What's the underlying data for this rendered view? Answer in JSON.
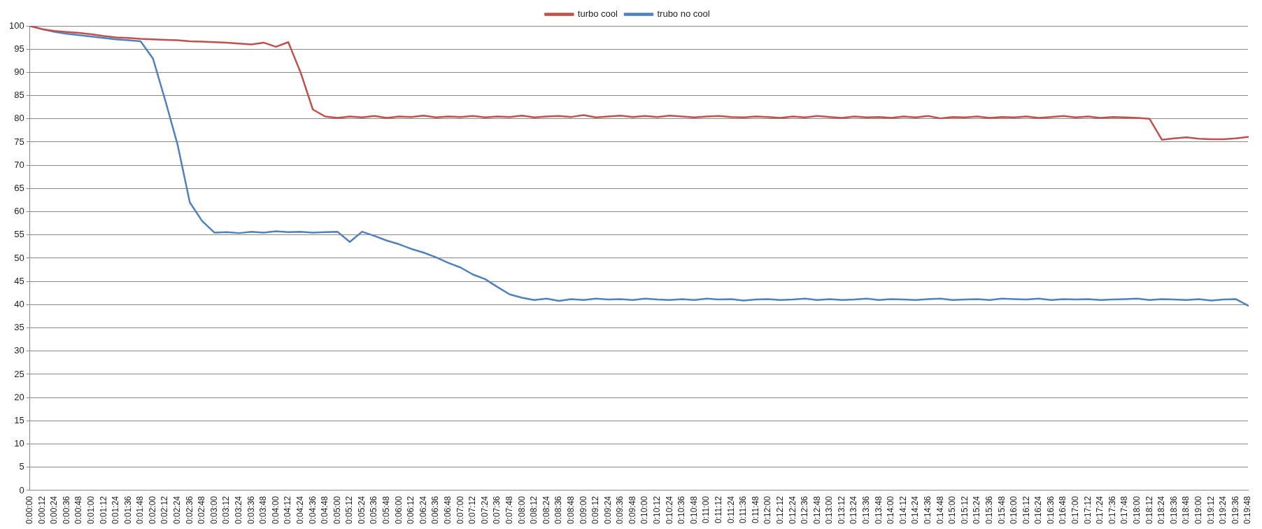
{
  "chart_data": {
    "type": "line",
    "categories": [
      "0:00:00",
      "0:00:12",
      "0:00:24",
      "0:00:36",
      "0:00:48",
      "0:01:00",
      "0:01:12",
      "0:01:24",
      "0:01:36",
      "0:01:48",
      "0:02:00",
      "0:02:12",
      "0:02:24",
      "0:02:36",
      "0:02:48",
      "0:03:00",
      "0:03:12",
      "0:03:24",
      "0:03:36",
      "0:03:48",
      "0:04:00",
      "0:04:12",
      "0:04:24",
      "0:04:36",
      "0:04:48",
      "0:05:00",
      "0:05:12",
      "0:05:24",
      "0:05:36",
      "0:05:48",
      "0:06:00",
      "0:06:12",
      "0:06:24",
      "0:06:36",
      "0:06:48",
      "0:07:00",
      "0:07:12",
      "0:07:24",
      "0:07:36",
      "0:07:48",
      "0:08:00",
      "0:08:12",
      "0:08:24",
      "0:08:36",
      "0:08:48",
      "0:09:00",
      "0:09:12",
      "0:09:24",
      "0:09:36",
      "0:09:48",
      "0:10:00",
      "0:10:12",
      "0:10:24",
      "0:10:36",
      "0:10:48",
      "0:11:00",
      "0:11:12",
      "0:11:24",
      "0:11:36",
      "0:11:48",
      "0:12:00",
      "0:12:12",
      "0:12:24",
      "0:12:36",
      "0:12:48",
      "0:13:00",
      "0:13:12",
      "0:13:24",
      "0:13:36",
      "0:13:48",
      "0:14:00",
      "0:14:12",
      "0:14:24",
      "0:14:36",
      "0:14:48",
      "0:15:00",
      "0:15:12",
      "0:15:24",
      "0:15:36",
      "0:15:48",
      "0:16:00",
      "0:16:12",
      "0:16:24",
      "0:16:36",
      "0:16:48",
      "0:17:00",
      "0:17:12",
      "0:17:24",
      "0:17:36",
      "0:17:48",
      "0:18:00",
      "0:18:12",
      "0:18:24",
      "0:18:36",
      "0:18:48",
      "0:19:00",
      "0:19:12",
      "0:19:24",
      "0:19:36",
      "0:19:48"
    ],
    "series": [
      {
        "name": "turbo cool",
        "color": "#c0504d",
        "values": [
          100,
          99.3,
          98.9,
          98.7,
          98.5,
          98.2,
          97.8,
          97.5,
          97.4,
          97.2,
          97.1,
          97,
          96.9,
          96.7,
          96.6,
          96.5,
          96.4,
          96.2,
          96,
          96.4,
          95.5,
          96.5,
          90,
          82,
          80.5,
          80.2,
          80.5,
          80.3,
          80.6,
          80.2,
          80.5,
          80.4,
          80.7,
          80.3,
          80.5,
          80.4,
          80.6,
          80.3,
          80.5,
          80.4,
          80.7,
          80.3,
          80.5,
          80.6,
          80.4,
          80.8,
          80.3,
          80.5,
          80.7,
          80.4,
          80.6,
          80.4,
          80.7,
          80.5,
          80.3,
          80.5,
          80.6,
          80.4,
          80.3,
          80.5,
          80.4,
          80.2,
          80.5,
          80.3,
          80.6,
          80.4,
          80.2,
          80.5,
          80.3,
          80.4,
          80.2,
          80.5,
          80.3,
          80.6,
          80.1,
          80.4,
          80.3,
          80.5,
          80.2,
          80.4,
          80.3,
          80.5,
          80.2,
          80.4,
          80.6,
          80.3,
          80.5,
          80.2,
          80.4,
          80.3,
          80.2,
          80,
          75.5,
          75.8,
          76,
          75.7,
          75.6,
          75.6,
          75.8,
          76.1
        ]
      },
      {
        "name": "trubo no cool",
        "color": "#4f81bd",
        "values": [
          100,
          99.3,
          98.7,
          98.3,
          98,
          97.7,
          97.4,
          97.1,
          96.9,
          96.7,
          93,
          84,
          74.5,
          62,
          58,
          55.5,
          55.6,
          55.4,
          55.7,
          55.5,
          55.8,
          55.6,
          55.7,
          55.5,
          55.6,
          55.7,
          53.5,
          55.7,
          54.8,
          53.8,
          53,
          52,
          51.2,
          50.2,
          49,
          48,
          46.5,
          45.5,
          43.8,
          42.2,
          41.5,
          41,
          41.3,
          40.8,
          41.2,
          41,
          41.3,
          41.1,
          41.2,
          41,
          41.3,
          41.1,
          41,
          41.2,
          41,
          41.3,
          41.1,
          41.2,
          40.9,
          41.1,
          41.2,
          41,
          41.1,
          41.3,
          41,
          41.2,
          41,
          41.1,
          41.3,
          41,
          41.2,
          41.1,
          41,
          41.2,
          41.3,
          41,
          41.1,
          41.2,
          41,
          41.3,
          41.2,
          41.1,
          41.3,
          41,
          41.2,
          41.1,
          41.2,
          41,
          41.1,
          41.2,
          41.3,
          41,
          41.2,
          41.1,
          41,
          41.2,
          40.9,
          41.1,
          41.2,
          39.8
        ]
      }
    ],
    "ylim": [
      0,
      100
    ],
    "yticks": [
      0,
      5,
      10,
      15,
      20,
      25,
      30,
      35,
      40,
      45,
      50,
      55,
      60,
      65,
      70,
      75,
      80,
      85,
      90,
      95,
      100
    ],
    "grid": "y",
    "legend": "top",
    "marker": "none",
    "line_style": "solid"
  }
}
